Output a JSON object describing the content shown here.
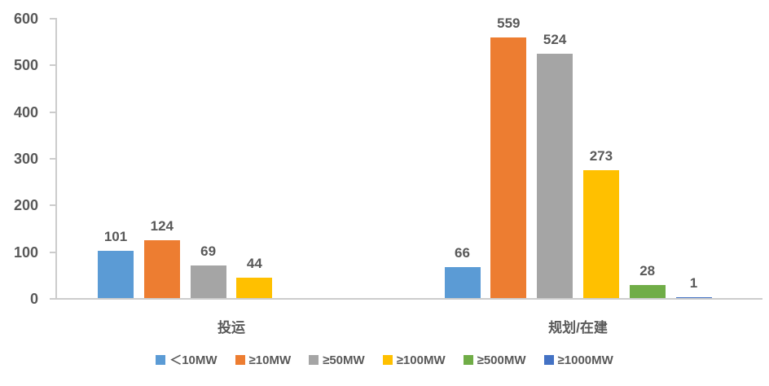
{
  "chart_data": {
    "type": "bar",
    "title": "",
    "categories": [
      "投运",
      "规划/在建"
    ],
    "series": [
      {
        "name": "＜10MW",
        "color": "#5B9BD5",
        "values": [
          101,
          66
        ]
      },
      {
        "name": "≥10MW",
        "color": "#ED7D31",
        "values": [
          124,
          559
        ]
      },
      {
        "name": "≥50MW",
        "color": "#A5A5A5",
        "values": [
          69,
          524
        ]
      },
      {
        "name": "≥100MW",
        "color": "#FFC000",
        "values": [
          44,
          273
        ]
      },
      {
        "name": "≥500MW",
        "color": "#70AD47",
        "values": [
          null,
          28
        ]
      },
      {
        "name": "≥1000MW",
        "color": "#4472C4",
        "values": [
          null,
          1
        ]
      }
    ],
    "ylim": [
      0,
      600
    ],
    "yticks": [
      0,
      100,
      200,
      300,
      400,
      500,
      600
    ],
    "value_labels_shown": true,
    "grid": "off",
    "legend_position": "bottom",
    "text_color": "#595959",
    "axis_color": "#cccccc"
  }
}
